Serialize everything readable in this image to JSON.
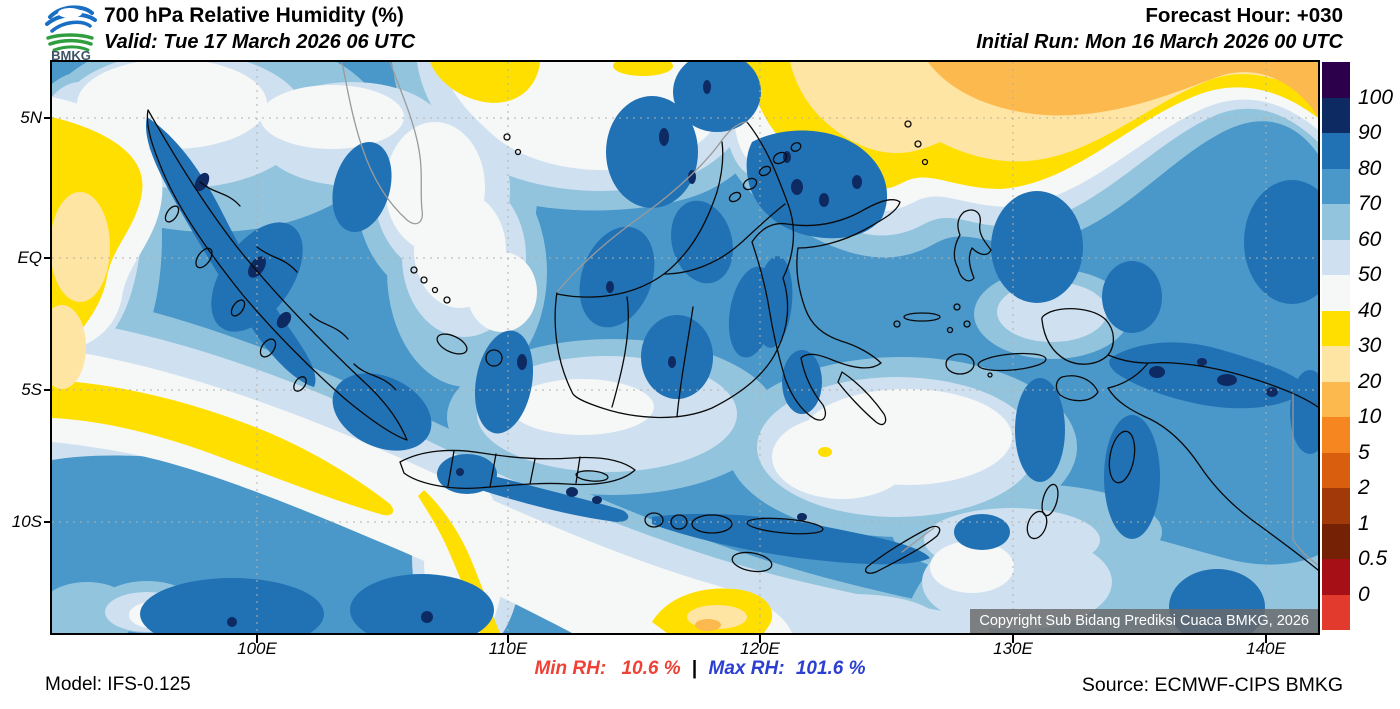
{
  "header": {
    "logo_text": "BMKG",
    "title": "700 hPa Relative Humidity (%)",
    "valid": "Valid: Tue 17 March 2026 06 UTC",
    "forecast_hour": "Forecast Hour: +030",
    "initial_run": "Initial Run: Mon 16 March 2026 00 UTC"
  },
  "map": {
    "copyright": "Copyright Sub Bidang Prediksi Cuaca BMKG, 2026",
    "x_tick_labels": [
      "100E",
      "110E",
      "120E",
      "130E",
      "140E"
    ],
    "y_tick_labels": [
      "5N",
      "EQ",
      "5S",
      "10S"
    ]
  },
  "colorbar": {
    "labels": [
      "100",
      "90",
      "80",
      "70",
      "60",
      "50",
      "40",
      "30",
      "20",
      "10",
      "5",
      "2",
      "1",
      "0.5",
      "0"
    ],
    "colors": [
      "#2d004b",
      "#0e2a63",
      "#2171b5",
      "#4a97c9",
      "#93c4de",
      "#cfe1f0",
      "#f6f7f7",
      "#ffdf00",
      "#ffe5a3",
      "#fcb94e",
      "#f6861f",
      "#d95e0e",
      "#a13a08",
      "#742105",
      "#a50f15",
      "#e23b2e"
    ]
  },
  "footer": {
    "model": "Model: IFS-0.125",
    "min_label": "Min RH:",
    "min_value": "10.6 %",
    "separator": "|",
    "max_label": "Max RH:",
    "max_value": "101.6 %",
    "source": "Source: ECMWF-CIPS BMKG"
  },
  "colors": {
    "min_text": "#ef4135",
    "max_text": "#2b3fd0"
  }
}
